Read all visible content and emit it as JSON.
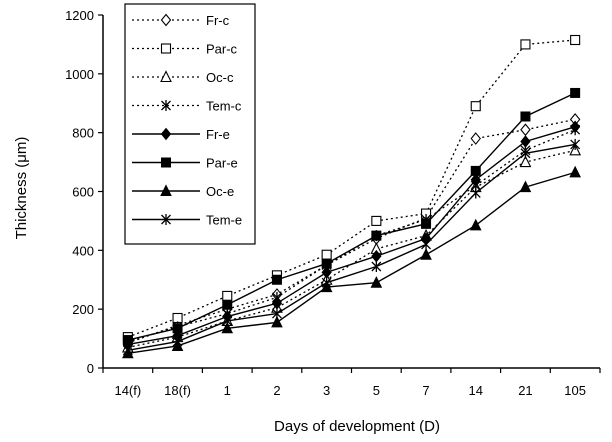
{
  "chart_data": {
    "type": "line",
    "title": "",
    "xlabel": "Days of development (D)",
    "ylabel": "Thickness (μm)",
    "ylim": [
      0,
      1200
    ],
    "yticks": [
      "0",
      "200",
      "400",
      "600",
      "800",
      "1000",
      "1200"
    ],
    "categories": [
      "14(f)",
      "18(f)",
      "1",
      "2",
      "3",
      "5",
      "7",
      "14",
      "21",
      "105"
    ],
    "legend_position": "top-left",
    "grid": false,
    "series": [
      {
        "name": "Fr-c",
        "marker": "diamond-open",
        "line": "dotted",
        "values": [
          85,
          145,
          200,
          250,
          350,
          440,
          510,
          780,
          810,
          845
        ]
      },
      {
        "name": "Par-c",
        "marker": "square-open",
        "line": "dotted",
        "values": [
          105,
          170,
          245,
          315,
          385,
          500,
          525,
          890,
          1100,
          1115
        ]
      },
      {
        "name": "Oc-c",
        "marker": "triangle-open",
        "line": "dotted",
        "values": [
          70,
          105,
          160,
          205,
          300,
          405,
          450,
          615,
          700,
          740
        ]
      },
      {
        "name": "Tem-c",
        "marker": "star",
        "line": "dotted",
        "values": [
          90,
          140,
          185,
          240,
          350,
          450,
          505,
          620,
          740,
          810
        ]
      },
      {
        "name": "Fr-e",
        "marker": "diamond",
        "line": "solid",
        "values": [
          80,
          110,
          175,
          220,
          325,
          380,
          440,
          640,
          770,
          820
        ]
      },
      {
        "name": "Par-e",
        "marker": "square",
        "line": "solid",
        "values": [
          95,
          135,
          215,
          300,
          355,
          450,
          490,
          670,
          855,
          935
        ]
      },
      {
        "name": "Oc-e",
        "marker": "triangle",
        "line": "solid",
        "values": [
          50,
          75,
          135,
          155,
          275,
          290,
          385,
          485,
          615,
          665
        ]
      },
      {
        "name": "Tem-e",
        "marker": "star",
        "line": "solid",
        "values": [
          60,
          90,
          160,
          185,
          290,
          345,
          420,
          595,
          730,
          760
        ]
      }
    ]
  }
}
